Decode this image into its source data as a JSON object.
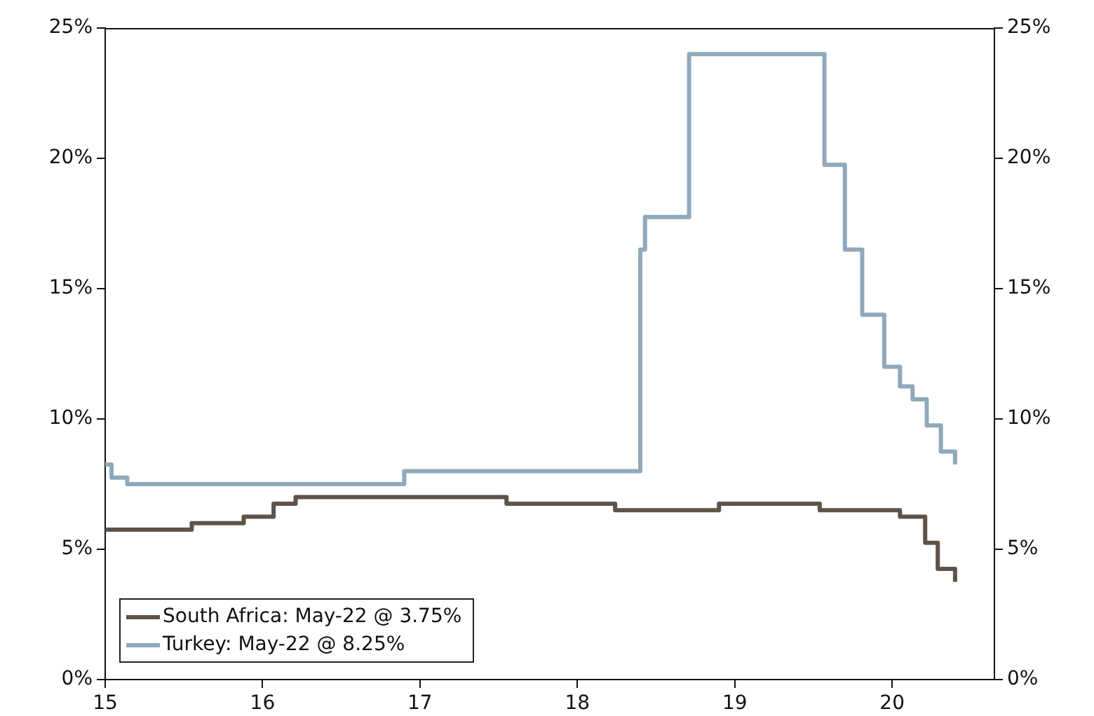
{
  "chart_data": {
    "type": "step",
    "xlim": [
      15,
      20.65
    ],
    "xticks": [
      15,
      16,
      17,
      18,
      19,
      20
    ],
    "ylim": [
      0,
      25
    ],
    "yticks": [
      {
        "value": 0,
        "label": "0%"
      },
      {
        "value": 5,
        "label": "5%"
      },
      {
        "value": 10,
        "label": "10%"
      },
      {
        "value": 15,
        "label": "15%"
      },
      {
        "value": 20,
        "label": "20%"
      },
      {
        "value": 25,
        "label": "25%"
      }
    ],
    "y2lim": [
      0,
      25
    ],
    "y2ticks": [
      {
        "value": 0,
        "label": "0%"
      },
      {
        "value": 5,
        "label": "5%"
      },
      {
        "value": 10,
        "label": "10%"
      },
      {
        "value": 15,
        "label": "15%"
      },
      {
        "value": 20,
        "label": "20%"
      },
      {
        "value": 25,
        "label": "25%"
      }
    ],
    "grid": false,
    "legend": "bottom left",
    "marker": "none",
    "line_style": "solid",
    "series": [
      {
        "name": "South Africa: May-22 @ 3.75%",
        "color": "#5f5247",
        "x": [
          15,
          15.55,
          15.88,
          16.07,
          16.21,
          17.55,
          18.24,
          18.9,
          19.54,
          20.05,
          20.21,
          20.29,
          20.4
        ],
        "values": [
          5.75,
          6,
          6.25,
          6.75,
          7,
          6.75,
          6.5,
          6.75,
          6.5,
          6.25,
          5.25,
          4.25,
          3.75
        ]
      },
      {
        "name": "Turkey: May-22 @ 8.25%",
        "color": "#8ea9bb",
        "x": [
          15,
          15.04,
          15.14,
          16.9,
          18.4,
          18.43,
          18.71,
          19.57,
          19.7,
          19.81,
          19.95,
          20.05,
          20.13,
          20.22,
          20.31,
          20.4
        ],
        "values": [
          8.25,
          7.75,
          7.5,
          8,
          16.5,
          17.75,
          24,
          19.75,
          16.5,
          14,
          12,
          11.25,
          10.75,
          9.75,
          8.75,
          8.25
        ]
      }
    ]
  }
}
